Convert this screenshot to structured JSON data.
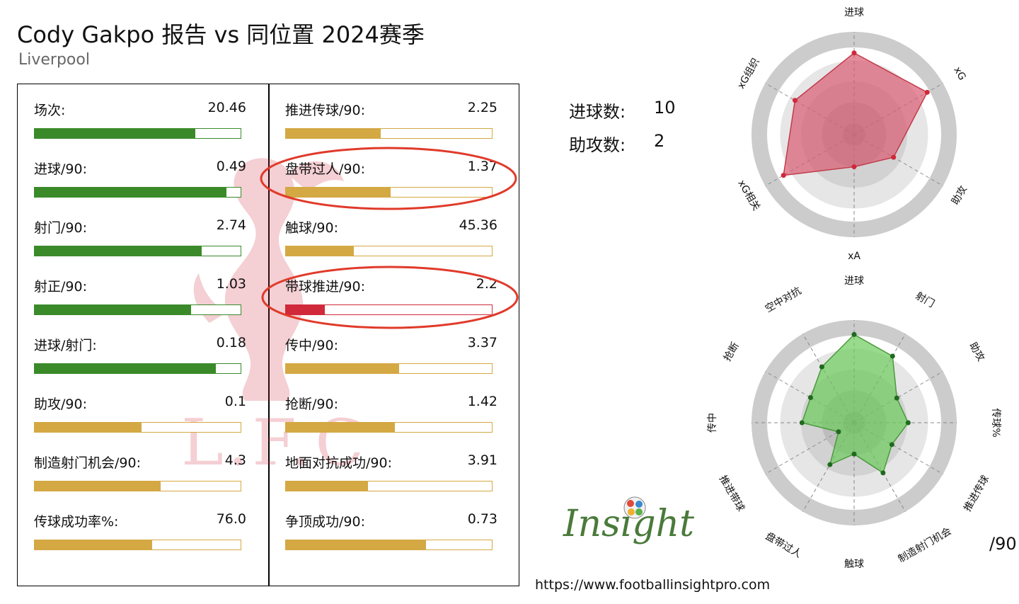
{
  "header": {
    "title": "Cody Gakpo 报告 vs 同位置 2024赛季",
    "team": "Liverpool"
  },
  "colors": {
    "green": "#3a8a2a",
    "gold": "#d4a843",
    "red": "#d0293a",
    "radar_red": "#d95b70",
    "radar_green": "#6ccc5c",
    "ring_gray": "#cccccc"
  },
  "stats_left": [
    {
      "label": "场次:",
      "value": "20.46",
      "percentile": 0.78,
      "color": "green"
    },
    {
      "label": "进球/90:",
      "value": "0.49",
      "percentile": 0.93,
      "color": "green"
    },
    {
      "label": "射门/90:",
      "value": "2.74",
      "percentile": 0.81,
      "color": "green"
    },
    {
      "label": "射正/90:",
      "value": "1.03",
      "percentile": 0.76,
      "color": "green"
    },
    {
      "label": "进球/射门:",
      "value": "0.18",
      "percentile": 0.88,
      "color": "green"
    },
    {
      "label": "助攻/90:",
      "value": "0.1",
      "percentile": 0.52,
      "color": "gold"
    },
    {
      "label": "制造射门机会/90:",
      "value": "4.3",
      "percentile": 0.61,
      "color": "gold"
    },
    {
      "label": "传球成功率%:",
      "value": "76.0",
      "percentile": 0.57,
      "color": "gold"
    }
  ],
  "stats_right": [
    {
      "label": "推进传球/90:",
      "value": "2.25",
      "percentile": 0.46,
      "color": "gold"
    },
    {
      "label": "盘带过人/90:",
      "value": "1.37",
      "percentile": 0.51,
      "color": "gold"
    },
    {
      "label": "触球/90:",
      "value": "45.36",
      "percentile": 0.33,
      "color": "gold"
    },
    {
      "label": "带球推进/90:",
      "value": "2.2",
      "percentile": 0.19,
      "color": "red"
    },
    {
      "label": "传中/90:",
      "value": "3.37",
      "percentile": 0.55,
      "color": "gold"
    },
    {
      "label": "抢断/90:",
      "value": "1.42",
      "percentile": 0.53,
      "color": "gold"
    },
    {
      "label": "地面对抗成功/90:",
      "value": "3.91",
      "percentile": 0.4,
      "color": "gold"
    },
    {
      "label": "争顶成功/90:",
      "value": "0.73",
      "percentile": 0.68,
      "color": "gold"
    }
  ],
  "summary": {
    "goals_label": "进球数:",
    "goals_value": "10",
    "assists_label": "助攻数:",
    "assists_value": "2"
  },
  "chart_data": [
    {
      "type": "radar",
      "axes": [
        "进球",
        "xG",
        "助攻",
        "xA",
        "xG相关",
        "xG组织"
      ],
      "values": [
        0.86,
        0.89,
        0.48,
        0.34,
        0.86,
        0.72
      ],
      "range": [
        0,
        1
      ]
    },
    {
      "type": "radar",
      "axes": [
        "进球",
        "射门",
        "助攻",
        "传球%",
        "推进传球",
        "制造射门机会",
        "触球",
        "盘带过人",
        "推进带球",
        "传中",
        "抢断",
        "空中对抗"
      ],
      "values": [
        0.93,
        0.81,
        0.52,
        0.57,
        0.46,
        0.61,
        0.33,
        0.51,
        0.19,
        0.55,
        0.53,
        0.68
      ],
      "range": [
        0,
        1
      ]
    }
  ],
  "radar2_unit": "/90",
  "logo": {
    "brand_text": "Insight"
  },
  "footer": {
    "url": "https://www.footballinsightpro.com"
  },
  "watermark": {
    "text": "L.F.C"
  }
}
